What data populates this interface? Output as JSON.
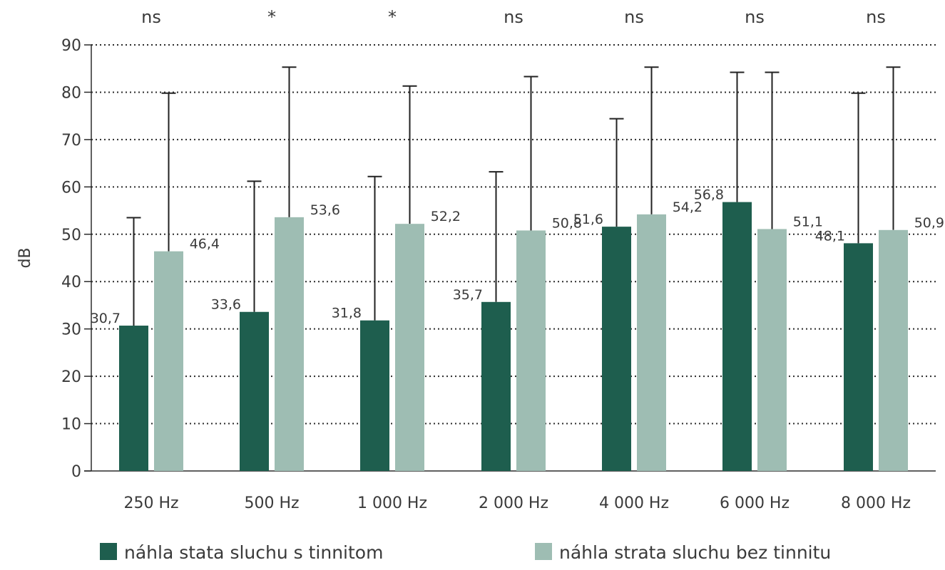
{
  "chart_data": {
    "type": "bar",
    "ylabel": "dB",
    "xlabel": "",
    "ylim": [
      0,
      90
    ],
    "yticks": [
      0,
      10,
      20,
      30,
      40,
      50,
      60,
      70,
      80,
      90
    ],
    "grid": "dotted horizontal",
    "categories": [
      "250 Hz",
      "500 Hz",
      "1 000 Hz",
      "2 000 Hz",
      "4 000 Hz",
      "6 000 Hz",
      "8 000 Hz"
    ],
    "significance": [
      "ns",
      "*",
      "*",
      "ns",
      "ns",
      "ns",
      "ns"
    ],
    "series": [
      {
        "name": "náhla stata sluchu s tinnitom",
        "color": "#1e5e4e",
        "values": [
          30.7,
          33.6,
          31.8,
          35.7,
          51.6,
          56.8,
          48.1
        ],
        "labels": [
          "30,7",
          "33,6",
          "31,8",
          "35,7",
          "51,6",
          "56,8",
          "48,1"
        ],
        "error_upper": [
          53.5,
          61.2,
          62.2,
          63.2,
          74.4,
          84.2,
          79.8
        ]
      },
      {
        "name": "náhla strata sluchu bez tinnitu",
        "color": "#9ebdb3",
        "values": [
          46.4,
          53.6,
          52.2,
          50.8,
          54.2,
          51.1,
          50.9
        ],
        "labels": [
          "46,4",
          "53,6",
          "52,2",
          "50,8",
          "54,2",
          "51,1",
          "50,9"
        ],
        "error_upper": [
          79.8,
          85.3,
          81.3,
          83.3,
          85.3,
          84.2,
          85.3
        ]
      }
    ],
    "legend_position": "bottom"
  }
}
